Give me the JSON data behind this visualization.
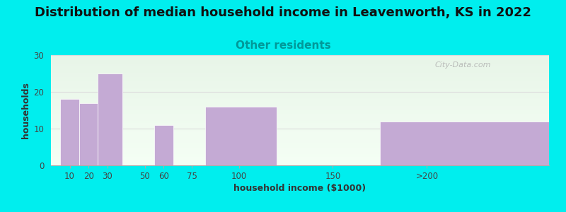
{
  "title": "Distribution of median household income in Leavenworth, KS in 2022",
  "subtitle": "Other residents",
  "xlabel": "household income ($1000)",
  "ylabel": "households",
  "bar_labels": [
    "10",
    "20",
    "30",
    "50",
    "60",
    "75",
    "100",
    "150",
    ">200"
  ],
  "bar_values": [
    18,
    17,
    25,
    0,
    11,
    0,
    16,
    0,
    12
  ],
  "bar_left_edges": [
    5,
    15,
    25,
    40,
    55,
    68,
    82,
    125,
    175
  ],
  "bar_right_edges": [
    15,
    25,
    38,
    55,
    65,
    82,
    120,
    175,
    265
  ],
  "bar_color": "#c4aad4",
  "ylim": [
    0,
    30
  ],
  "yticks": [
    0,
    10,
    20,
    30
  ],
  "xlim": [
    0,
    265
  ],
  "xtick_positions": [
    10,
    20,
    30,
    50,
    60,
    75,
    100,
    150,
    200
  ],
  "background_color": "#00eeee",
  "plot_bg_top": "#e8f5e8",
  "plot_bg_bottom": "#f5fff5",
  "title_fontsize": 13,
  "subtitle_fontsize": 11,
  "subtitle_color": "#009999",
  "axis_label_fontsize": 9,
  "tick_fontsize": 8.5,
  "title_fontweight": "bold",
  "watermark_text": "City-Data.com",
  "grid_color": "#dddddd",
  "spine_color": "#aaaaaa"
}
